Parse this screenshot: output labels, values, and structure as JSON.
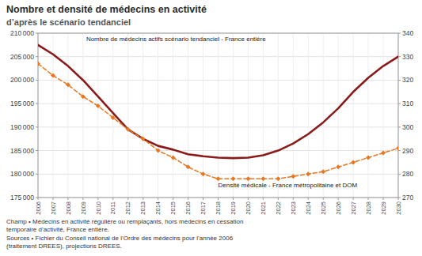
{
  "chart_data": {
    "type": "line",
    "title": "Nombre et densité de médecins en activité",
    "subtitle": "d’après le scénario tendanciel",
    "annotations": [
      "Nombre de médecins actifs scénario tendanciel - France entière",
      "Densité médicale - France métropolitaine et DOM"
    ],
    "notes": [
      "Champ • Médecins en activité régulière ou remplaçants, hors médecins en cessation\ntemporaire d’activité, France entière.",
      "Sources • Fichier du Conseil national de l’Ordre des médecins pour l’année 2006\n(traitement DREES), projections DREES."
    ],
    "x": [
      2006,
      2007,
      2008,
      2009,
      2010,
      2011,
      2012,
      2013,
      2014,
      2015,
      2016,
      2017,
      2018,
      2019,
      2020,
      2021,
      2022,
      2023,
      2024,
      2025,
      2026,
      2027,
      2028,
      2029,
      2030
    ],
    "xlim": [
      2006,
      2030
    ],
    "xticks": [
      2006,
      2007,
      2008,
      2009,
      2010,
      2011,
      2012,
      2013,
      2014,
      2015,
      2016,
      2017,
      2018,
      2019,
      2020,
      2021,
      2022,
      2023,
      2024,
      2025,
      2026,
      2027,
      2028,
      2029,
      2030
    ],
    "ylim": [
      175000,
      210000
    ],
    "yticks": [
      {
        "value": 175000,
        "label": "175 000"
      },
      {
        "value": 180000,
        "label": "180 000"
      },
      {
        "value": 185000,
        "label": "185 000"
      },
      {
        "value": 190000,
        "label": "190 000"
      },
      {
        "value": 195000,
        "label": "195 000"
      },
      {
        "value": 200000,
        "label": "200 000"
      },
      {
        "value": 205000,
        "label": "205 000"
      },
      {
        "value": 210000,
        "label": "210 000"
      }
    ],
    "y2lim": [
      270,
      340
    ],
    "y2ticks": [
      270,
      280,
      290,
      300,
      310,
      320,
      330,
      340
    ],
    "grid": true,
    "series": [
      {
        "color": "#8b1a1a",
        "line_style": "solid",
        "values": [
          207500,
          205500,
          203000,
          200000,
          196500,
          193000,
          189500,
          187500,
          186000,
          185200,
          184200,
          183800,
          183500,
          183400,
          183500,
          184000,
          185000,
          186500,
          188500,
          191000,
          194000,
          197500,
          200500,
          203000,
          205000
        ]
      },
      {
        "color": "#e87722",
        "line_style": "dashed",
        "marker": "diamond",
        "axis": "y2",
        "values": [
          327,
          322,
          318,
          313,
          309,
          304,
          299,
          295,
          290,
          287,
          283,
          280,
          278,
          278,
          278,
          278,
          278,
          279,
          280,
          281,
          283,
          285,
          287,
          289,
          291
        ]
      }
    ]
  }
}
